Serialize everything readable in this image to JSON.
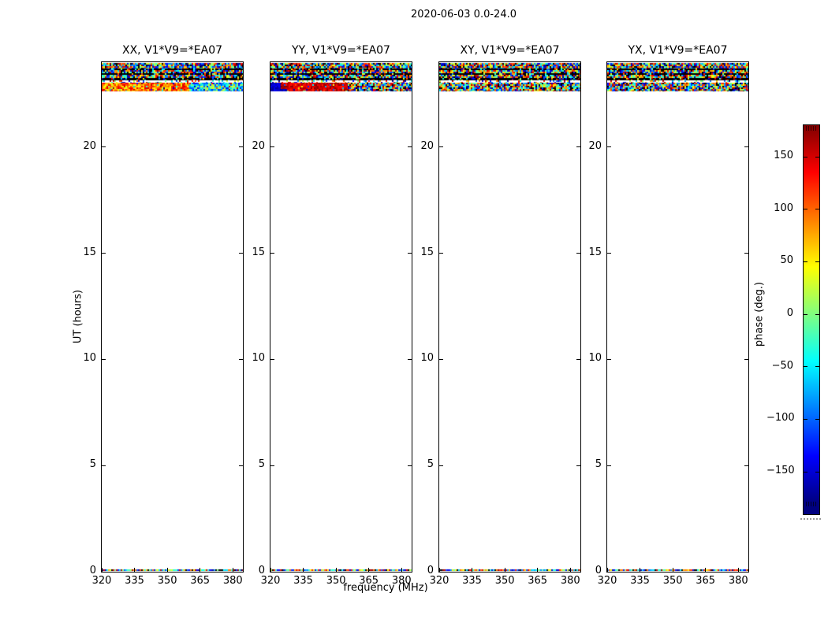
{
  "figure": {
    "title": "2020-06-03 0.0-24.0"
  },
  "chart_data": {
    "type": "heatmap",
    "title": "2020-06-03 0.0-24.0",
    "xlabel": "frequency (MHz)",
    "ylabel": "UT (hours)",
    "x_ticks": [
      320,
      335,
      350,
      365,
      380
    ],
    "y_ticks": [
      0,
      5,
      10,
      15,
      20
    ],
    "x_range": [
      320,
      384.6
    ],
    "y_range": [
      0,
      24
    ],
    "colorbar": {
      "label": "phase (deg.)",
      "cmap": "jet",
      "vmin": -180,
      "vmax": 180,
      "ticks": [
        150,
        100,
        50,
        0,
        -50,
        -100,
        -150
      ]
    },
    "notes": "Visibility phase waterfall; data only near UT 22.6-24.0 h (striped noise bands) and a thin strip at UT 0 h; rest of each panel is blank (no data).",
    "panels": [
      {
        "title": "XX, V1*V9=*EA07",
        "seed": 1077,
        "bands": [
          {
            "off": 1,
            "h": 7,
            "seg": [
              {
                "f0": 0,
                "f1": 1,
                "p": "random"
              }
            ]
          },
          {
            "off": 8,
            "h": 2,
            "seg": [
              {
                "f0": 0,
                "f1": 1,
                "p": "dark"
              }
            ]
          },
          {
            "off": 10,
            "h": 4,
            "seg": [
              {
                "f0": 0,
                "f1": 1,
                "p": "random"
              }
            ]
          },
          {
            "off": 14,
            "h": 2,
            "seg": [
              {
                "f0": 0,
                "f1": 1,
                "p": "dark"
              }
            ]
          },
          {
            "off": 16,
            "h": 4,
            "seg": [
              {
                "f0": 0,
                "f1": 1,
                "p": "random"
              }
            ]
          },
          {
            "off": 20,
            "h": 3,
            "seg": [
              {
                "f0": 0,
                "f1": 1,
                "p": "dark"
              }
            ]
          },
          {
            "off": 23,
            "h": 3,
            "seg": [
              {
                "f0": 0,
                "f1": 1,
                "p": "sparse"
              }
            ]
          },
          {
            "off": 26,
            "h": 8,
            "seg": [
              {
                "f0": 0,
                "f1": 0.62,
                "p": "warm"
              },
              {
                "f0": 0.62,
                "f1": 1,
                "p": "cool"
              }
            ]
          },
          {
            "off": 34,
            "h": 3,
            "seg": [
              {
                "f0": 0,
                "f1": 0.62,
                "p": "warm"
              },
              {
                "f0": 0.62,
                "f1": 1,
                "p": "cool"
              }
            ]
          },
          {
            "off": 644,
            "h": 2,
            "seg": [
              {
                "f0": 0,
                "f1": 1,
                "p": "random"
              }
            ]
          }
        ]
      },
      {
        "title": "YY, V1*V9=*EA07",
        "seed": 2154,
        "bands": [
          {
            "off": 1,
            "h": 7,
            "seg": [
              {
                "f0": 0,
                "f1": 1,
                "p": "random"
              }
            ]
          },
          {
            "off": 8,
            "h": 2,
            "seg": [
              {
                "f0": 0,
                "f1": 1,
                "p": "dark"
              }
            ]
          },
          {
            "off": 10,
            "h": 4,
            "seg": [
              {
                "f0": 0,
                "f1": 1,
                "p": "random"
              }
            ]
          },
          {
            "off": 14,
            "h": 2,
            "seg": [
              {
                "f0": 0,
                "f1": 1,
                "p": "dark"
              }
            ]
          },
          {
            "off": 16,
            "h": 4,
            "seg": [
              {
                "f0": 0,
                "f1": 1,
                "p": "random"
              }
            ]
          },
          {
            "off": 20,
            "h": 3,
            "seg": [
              {
                "f0": 0,
                "f1": 1,
                "p": "dark"
              }
            ]
          },
          {
            "off": 23,
            "h": 3,
            "seg": [
              {
                "f0": 0,
                "f1": 1,
                "p": "sparse"
              }
            ]
          },
          {
            "off": 26,
            "h": 8,
            "seg": [
              {
                "f0": 0,
                "f1": 0.07,
                "p": "blue"
              },
              {
                "f0": 0.07,
                "f1": 0.55,
                "p": "hot"
              },
              {
                "f0": 0.55,
                "f1": 1,
                "p": "random"
              }
            ]
          },
          {
            "off": 34,
            "h": 3,
            "seg": [
              {
                "f0": 0,
                "f1": 0.12,
                "p": "blue"
              },
              {
                "f0": 0.12,
                "f1": 0.55,
                "p": "hot"
              },
              {
                "f0": 0.55,
                "f1": 1,
                "p": "random"
              }
            ]
          },
          {
            "off": 644,
            "h": 2,
            "seg": [
              {
                "f0": 0,
                "f1": 1,
                "p": "random"
              }
            ]
          }
        ]
      },
      {
        "title": "XY, V1*V9=*EA07",
        "seed": 3231,
        "bands": [
          {
            "off": 1,
            "h": 7,
            "seg": [
              {
                "f0": 0,
                "f1": 1,
                "p": "random"
              }
            ]
          },
          {
            "off": 8,
            "h": 2,
            "seg": [
              {
                "f0": 0,
                "f1": 1,
                "p": "dark"
              }
            ]
          },
          {
            "off": 10,
            "h": 4,
            "seg": [
              {
                "f0": 0,
                "f1": 1,
                "p": "random"
              }
            ]
          },
          {
            "off": 14,
            "h": 2,
            "seg": [
              {
                "f0": 0,
                "f1": 1,
                "p": "dark"
              }
            ]
          },
          {
            "off": 16,
            "h": 4,
            "seg": [
              {
                "f0": 0,
                "f1": 1,
                "p": "random"
              }
            ]
          },
          {
            "off": 20,
            "h": 3,
            "seg": [
              {
                "f0": 0,
                "f1": 1,
                "p": "dark"
              }
            ]
          },
          {
            "off": 23,
            "h": 3,
            "seg": [
              {
                "f0": 0,
                "f1": 1,
                "p": "sparse"
              }
            ]
          },
          {
            "off": 26,
            "h": 8,
            "seg": [
              {
                "f0": 0,
                "f1": 1,
                "p": "random"
              }
            ]
          },
          {
            "off": 34,
            "h": 3,
            "seg": [
              {
                "f0": 0,
                "f1": 1,
                "p": "random"
              }
            ]
          },
          {
            "off": 644,
            "h": 2,
            "seg": [
              {
                "f0": 0,
                "f1": 1,
                "p": "random"
              }
            ]
          }
        ]
      },
      {
        "title": "YX, V1*V9=*EA07",
        "seed": 4308,
        "bands": [
          {
            "off": 1,
            "h": 7,
            "seg": [
              {
                "f0": 0,
                "f1": 1,
                "p": "random"
              }
            ]
          },
          {
            "off": 8,
            "h": 2,
            "seg": [
              {
                "f0": 0,
                "f1": 1,
                "p": "dark"
              }
            ]
          },
          {
            "off": 10,
            "h": 4,
            "seg": [
              {
                "f0": 0,
                "f1": 1,
                "p": "random"
              }
            ]
          },
          {
            "off": 14,
            "h": 2,
            "seg": [
              {
                "f0": 0,
                "f1": 1,
                "p": "dark"
              }
            ]
          },
          {
            "off": 16,
            "h": 4,
            "seg": [
              {
                "f0": 0,
                "f1": 1,
                "p": "random"
              }
            ]
          },
          {
            "off": 20,
            "h": 3,
            "seg": [
              {
                "f0": 0,
                "f1": 1,
                "p": "dark"
              }
            ]
          },
          {
            "off": 23,
            "h": 3,
            "seg": [
              {
                "f0": 0,
                "f1": 1,
                "p": "sparse"
              }
            ]
          },
          {
            "off": 26,
            "h": 8,
            "seg": [
              {
                "f0": 0,
                "f1": 1,
                "p": "random"
              }
            ]
          },
          {
            "off": 34,
            "h": 3,
            "seg": [
              {
                "f0": 0,
                "f1": 1,
                "p": "random"
              }
            ]
          },
          {
            "off": 644,
            "h": 2,
            "seg": [
              {
                "f0": 0,
                "f1": 1,
                "p": "random"
              }
            ]
          }
        ]
      }
    ]
  }
}
